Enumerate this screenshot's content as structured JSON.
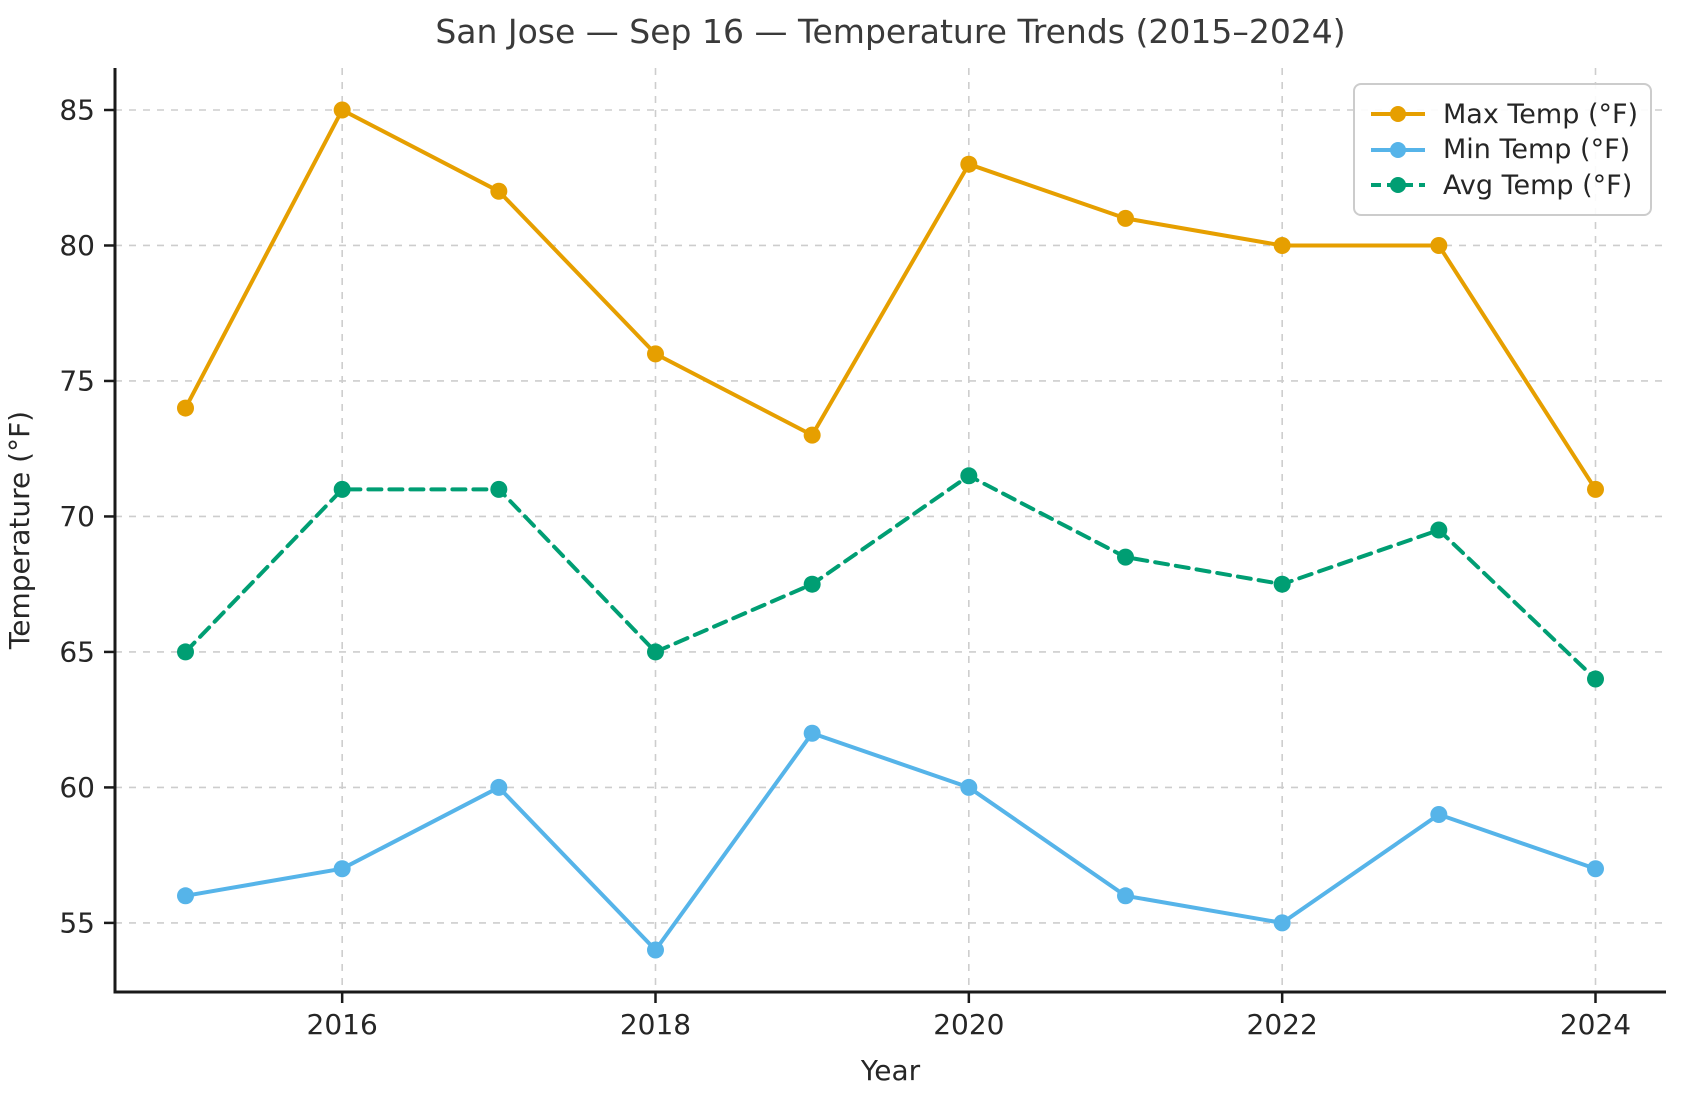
{
  "chart_data": {
    "type": "line",
    "title": "San Jose — Sep 16 — Temperature Trends (2015–2024)",
    "xlabel": "Year",
    "ylabel": "Temperature (°F)",
    "x": [
      2015,
      2016,
      2017,
      2018,
      2019,
      2020,
      2021,
      2022,
      2023,
      2024
    ],
    "series": [
      {
        "name": "Max Temp (°F)",
        "color": "#E69F00",
        "linestyle": "solid",
        "marker": "circle",
        "values": [
          74,
          85,
          82,
          76,
          73,
          83,
          81,
          80,
          80,
          71
        ]
      },
      {
        "name": "Min Temp (°F)",
        "color": "#56B4E9",
        "linestyle": "solid",
        "marker": "circle",
        "values": [
          56,
          57,
          60,
          54,
          62,
          60,
          56,
          55,
          59,
          57
        ]
      },
      {
        "name": "Avg Temp (°F)",
        "color": "#009E73",
        "linestyle": "dashed",
        "marker": "circle",
        "values": [
          65,
          71,
          71,
          65,
          67.5,
          71.5,
          68.5,
          67.5,
          69.5,
          64
        ]
      }
    ],
    "xticks": [
      2016,
      2018,
      2020,
      2022,
      2024
    ],
    "yticks": [
      55,
      60,
      65,
      70,
      75,
      80,
      85
    ],
    "xlim": [
      2014.55,
      2024.45
    ],
    "ylim": [
      52.45,
      86.55
    ],
    "grid": true,
    "grid_color": "#cdcdcd",
    "axis_color": "#1a1a1a",
    "text_color": "#262626",
    "legend_position": "upper right"
  }
}
